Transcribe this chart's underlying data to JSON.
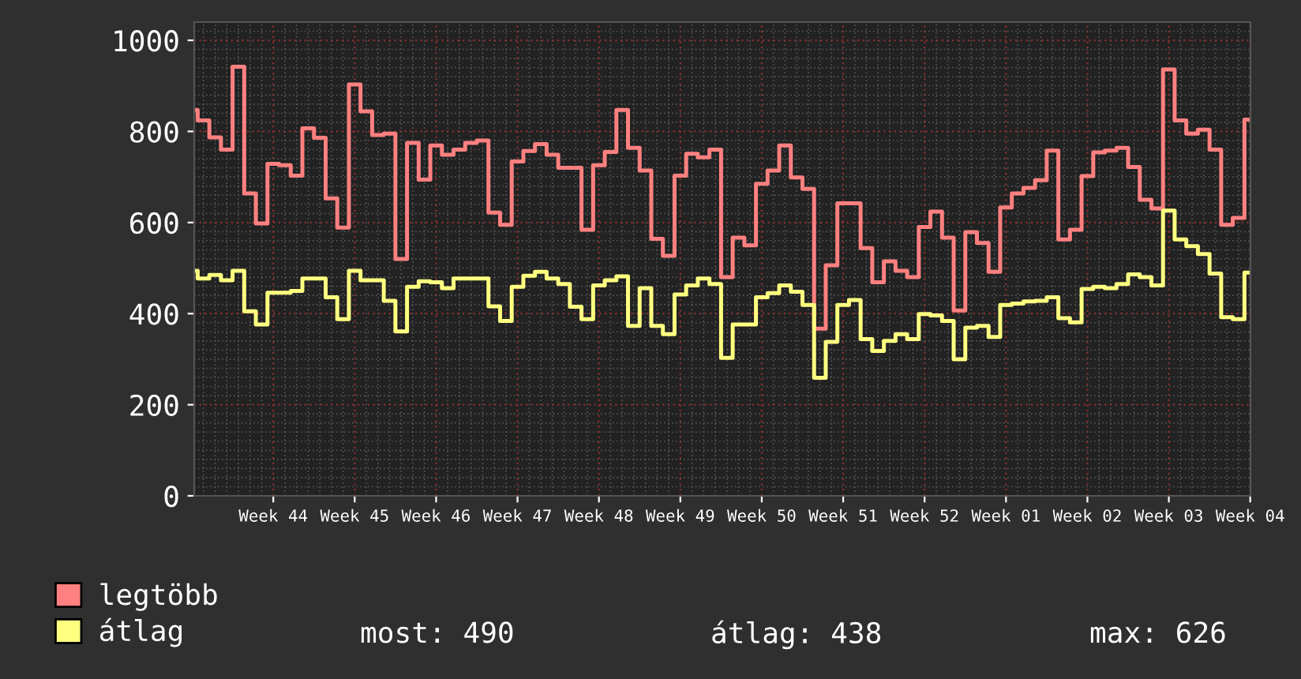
{
  "chart_data": {
    "type": "step",
    "categories": [
      null,
      null,
      null,
      null,
      null,
      null,
      null,
      "Week 44",
      null,
      null,
      null,
      null,
      null,
      null,
      "Week 45",
      null,
      null,
      null,
      null,
      null,
      null,
      "Week 46",
      null,
      null,
      null,
      null,
      null,
      null,
      "Week 47",
      null,
      null,
      null,
      null,
      null,
      null,
      "Week 48",
      null,
      null,
      null,
      null,
      null,
      null,
      "Week 49",
      null,
      null,
      null,
      null,
      null,
      null,
      "Week 50",
      null,
      null,
      null,
      null,
      null,
      null,
      "Week 51",
      null,
      null,
      null,
      null,
      null,
      null,
      "Week 52",
      null,
      null,
      null,
      null,
      null,
      null,
      "Week 01",
      null,
      null,
      null,
      null,
      null,
      null,
      "Week 02",
      null,
      null,
      null,
      null,
      null,
      null,
      "Week 03",
      null,
      null,
      null,
      null,
      null,
      null,
      "Week 04"
    ],
    "series": [
      {
        "name": "legtöbb",
        "color": "#ff8080",
        "values": [
          847,
          824,
          787,
          760,
          942,
          664,
          598,
          729,
          726,
          703,
          807,
          786,
          653,
          589,
          903,
          844,
          792,
          795,
          520,
          775,
          694,
          769,
          749,
          760,
          775,
          780,
          622,
          595,
          734,
          757,
          772,
          749,
          720,
          720,
          584,
          726,
          755,
          847,
          764,
          714,
          564,
          527,
          703,
          751,
          743,
          760,
          480,
          567,
          550,
          685,
          714,
          769,
          699,
          674,
          367,
          506,
          642,
          642,
          544,
          469,
          515,
          494,
          480,
          590,
          624,
          567,
          407,
          579,
          555,
          492,
          633,
          664,
          676,
          693,
          758,
          563,
          584,
          702,
          754,
          758,
          764,
          722,
          650,
          631,
          936,
          824,
          795,
          804,
          760,
          595,
          610,
          826
        ]
      },
      {
        "name": "átlag",
        "color": "#ffff80",
        "values": [
          494,
          477,
          485,
          473,
          494,
          405,
          376,
          446,
          446,
          450,
          477,
          477,
          436,
          388,
          494,
          473,
          473,
          428,
          361,
          459,
          471,
          469,
          456,
          477,
          477,
          477,
          416,
          384,
          459,
          483,
          492,
          477,
          465,
          415,
          388,
          462,
          473,
          482,
          373,
          456,
          373,
          355,
          442,
          462,
          477,
          465,
          303,
          376,
          376,
          436,
          445,
          462,
          448,
          419,
          259,
          338,
          419,
          430,
          344,
          318,
          340,
          355,
          344,
          399,
          396,
          384,
          300,
          369,
          373,
          349,
          419,
          422,
          427,
          428,
          436,
          390,
          381,
          454,
          459,
          456,
          465,
          486,
          480,
          462,
          626,
          563,
          548,
          531,
          488,
          392,
          388,
          490
        ]
      }
    ],
    "ylim": [
      0,
      1040
    ],
    "yticks": [
      0,
      200,
      400,
      600,
      800,
      1000
    ],
    "grid": true,
    "legend": "bottom left",
    "annotations": [
      "most: 490",
      "átlag: 438",
      "max: 626"
    ]
  }
}
